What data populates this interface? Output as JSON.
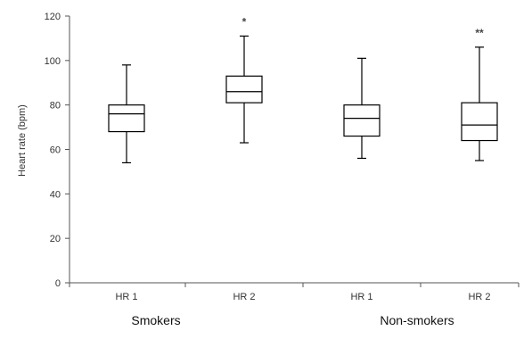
{
  "chart_data": {
    "type": "box",
    "title": "",
    "xlabel": "",
    "ylabel": "Heart rate (bpm)",
    "ylim": [
      0,
      120
    ],
    "yticks": [
      0,
      20,
      40,
      60,
      80,
      100,
      120
    ],
    "groups": [
      "Smokers",
      "Non-smokers"
    ],
    "categories": [
      "HR 1",
      "HR 2",
      "HR 1",
      "HR 2"
    ],
    "boxes": [
      {
        "group": "Smokers",
        "label": "HR 1",
        "min": 54,
        "q1": 68,
        "median": 76,
        "q3": 80,
        "max": 98,
        "annotation": ""
      },
      {
        "group": "Smokers",
        "label": "HR 2",
        "min": 63,
        "q1": 81,
        "median": 86,
        "q3": 93,
        "max": 111,
        "annotation": "*"
      },
      {
        "group": "Non-smokers",
        "label": "HR 1",
        "min": 56,
        "q1": 66,
        "median": 74,
        "q3": 80,
        "max": 101,
        "annotation": ""
      },
      {
        "group": "Non-smokers",
        "label": "HR 2",
        "min": 55,
        "q1": 64,
        "median": 71,
        "q3": 81,
        "max": 106,
        "annotation": "**"
      }
    ],
    "grid": false,
    "legend": "none",
    "colors": {
      "box_fill": "#ffffff",
      "box_stroke": "#000000",
      "axis": "#555555"
    }
  }
}
